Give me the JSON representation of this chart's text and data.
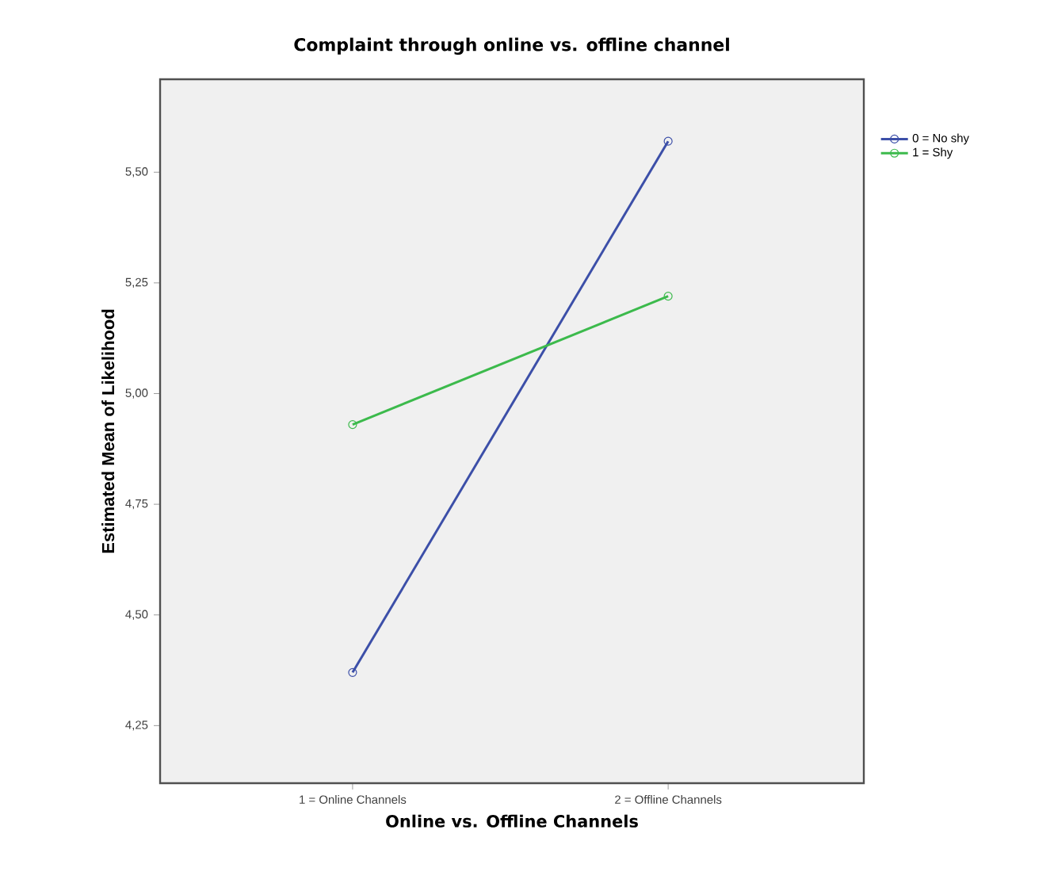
{
  "chart_data": {
    "type": "line",
    "title": "Complaint through online vs. offline channel",
    "xlabel": "Online vs. Offline Channels",
    "ylabel": "Estimated Mean of Likelihood",
    "categories": [
      "1 = Online Channels",
      "2 = Offline Channels"
    ],
    "series": [
      {
        "name": "0 = No shy",
        "color": "#3c4fa8",
        "values": [
          4.37,
          5.57
        ]
      },
      {
        "name": "1 = Shy",
        "color": "#3cba4c",
        "values": [
          4.93,
          5.22
        ]
      }
    ],
    "ylim": [
      4.12,
      5.71
    ],
    "yticks": [
      {
        "value": 4.25,
        "label": "4,25"
      },
      {
        "value": 4.5,
        "label": "4,50"
      },
      {
        "value": 4.75,
        "label": "4,75"
      },
      {
        "value": 5.0,
        "label": "5,00"
      },
      {
        "value": 5.25,
        "label": "5,25"
      },
      {
        "value": 5.5,
        "label": "5,50"
      }
    ],
    "marker": "circle",
    "line_style": "solid",
    "legend": "top right",
    "grid": false
  }
}
